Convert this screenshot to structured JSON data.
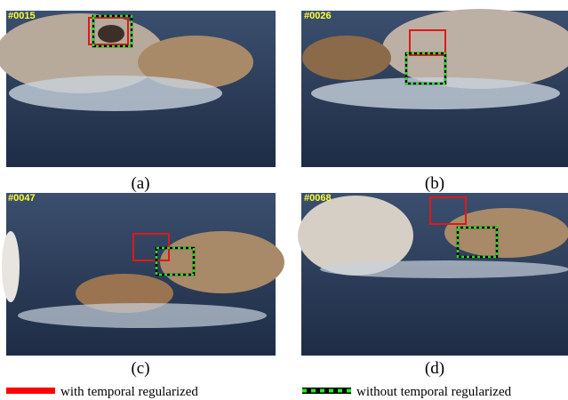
{
  "panels": [
    {
      "frame": "#0015",
      "caption": "(a)"
    },
    {
      "frame": "#0026",
      "caption": "(b)"
    },
    {
      "frame": "#0047",
      "caption": "(c)"
    },
    {
      "frame": "#0068",
      "caption": "(d)"
    }
  ],
  "legend": {
    "red": "with temporal regularized",
    "green": "without temporal regularized"
  }
}
